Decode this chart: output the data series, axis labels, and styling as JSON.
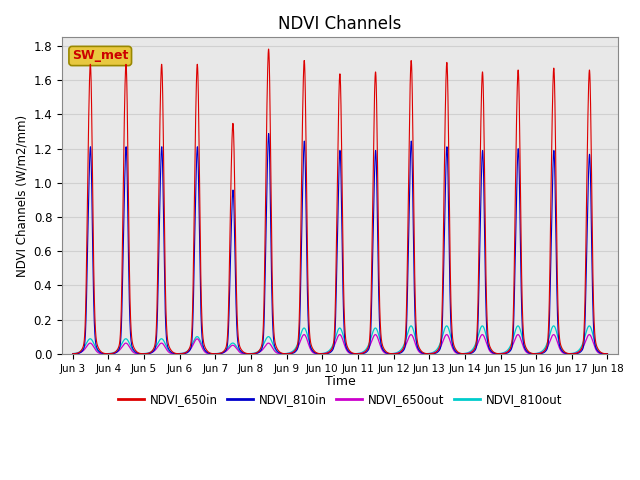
{
  "title": "NDVI Channels",
  "ylabel": "NDVI Channels (W/m2/mm)",
  "xlabel": "Time",
  "ylim": [
    0,
    1.85
  ],
  "xlim": [
    -0.3,
    15.3
  ],
  "annotation_text": "SW_met",
  "annotation_color": "#cc0000",
  "annotation_bg": "#e8c840",
  "legend_entries": [
    "NDVI_650in",
    "NDVI_810in",
    "NDVI_650out",
    "NDVI_810out"
  ],
  "line_colors": [
    "#dd0000",
    "#0000cc",
    "#cc00cc",
    "#00cccc"
  ],
  "grid_color": "#d0d0d0",
  "bg_color": "#e8e8e8",
  "n_cycles": 15,
  "peak_heights_650in": [
    1.52,
    1.52,
    1.52,
    1.52,
    1.21,
    1.6,
    1.54,
    1.47,
    1.48,
    1.54,
    1.53,
    1.48,
    1.49,
    1.5,
    1.49
  ],
  "peak_heights_810in": [
    1.1,
    1.1,
    1.1,
    1.1,
    0.87,
    1.17,
    1.13,
    1.08,
    1.08,
    1.13,
    1.1,
    1.08,
    1.09,
    1.08,
    1.06
  ],
  "peak_heights_650out": [
    0.05,
    0.05,
    0.05,
    0.07,
    0.04,
    0.05,
    0.09,
    0.09,
    0.09,
    0.09,
    0.09,
    0.09,
    0.09,
    0.09,
    0.09
  ],
  "peak_heights_810out": [
    0.07,
    0.07,
    0.07,
    0.08,
    0.05,
    0.08,
    0.12,
    0.12,
    0.12,
    0.13,
    0.13,
    0.13,
    0.13,
    0.13,
    0.13
  ],
  "xtick_labels": [
    "Jun 3",
    "Jun 4",
    "Jun 5",
    "Jun 6",
    "Jun 7",
    "Jun 8",
    "Jun 9",
    "Jun 10",
    "Jun 11",
    "Jun 12",
    "Jun 13",
    "Jun 14",
    "Jun 15",
    "Jun 16",
    "Jun 17",
    "Jun 18"
  ],
  "xtick_positions": [
    0,
    1,
    2,
    3,
    4,
    5,
    6,
    7,
    8,
    9,
    10,
    11,
    12,
    13,
    14,
    15
  ],
  "ytick_labels": [
    "0.0",
    "0.2",
    "0.4",
    "0.6",
    "0.8",
    "1.0",
    "1.2",
    "1.4",
    "1.6",
    "1.8"
  ],
  "ytick_positions": [
    0.0,
    0.2,
    0.4,
    0.6,
    0.8,
    1.0,
    1.2,
    1.4,
    1.6,
    1.8
  ]
}
